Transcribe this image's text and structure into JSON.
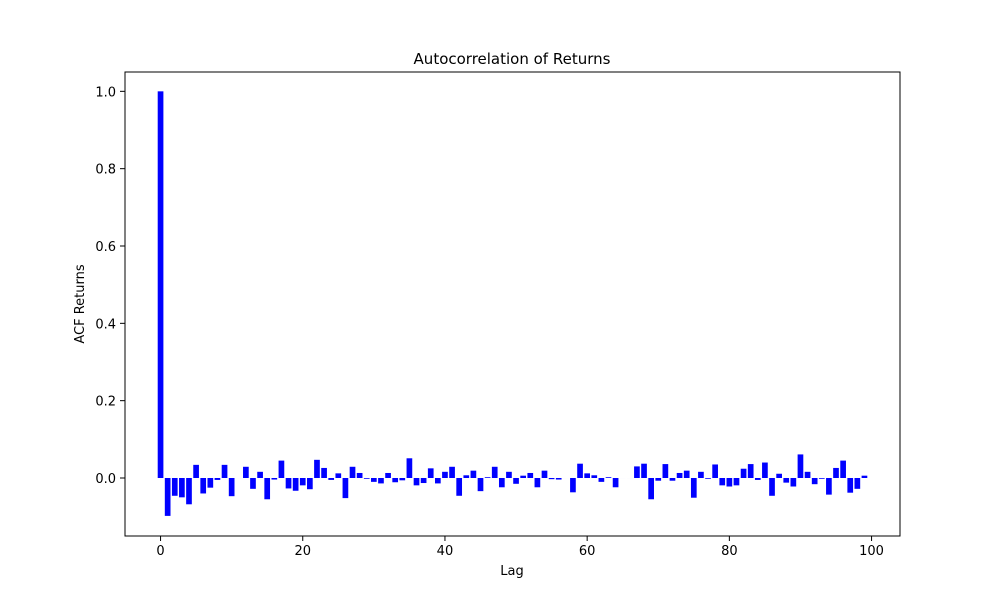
{
  "chart_data": {
    "type": "bar",
    "title": "Autocorrelation of Returns",
    "xlabel": "Lag",
    "ylabel": "ACF Returns",
    "xlim": [
      -5,
      104
    ],
    "ylim": [
      -0.15,
      1.05
    ],
    "x_ticks": [
      0,
      20,
      40,
      60,
      80,
      100
    ],
    "y_ticks": [
      0.0,
      0.2,
      0.4,
      0.6,
      0.8,
      1.0
    ],
    "x_tick_labels": [
      "0",
      "20",
      "40",
      "60",
      "80",
      "100"
    ],
    "y_tick_labels": [
      "0.0",
      "0.2",
      "0.4",
      "0.6",
      "0.8",
      "1.0"
    ],
    "bar_color": "#0000ff",
    "grid": false,
    "x": [
      0,
      1,
      2,
      3,
      4,
      5,
      6,
      7,
      8,
      9,
      10,
      11,
      12,
      13,
      14,
      15,
      16,
      17,
      18,
      19,
      20,
      21,
      22,
      23,
      24,
      25,
      26,
      27,
      28,
      29,
      30,
      31,
      32,
      33,
      34,
      35,
      36,
      37,
      38,
      39,
      40,
      41,
      42,
      43,
      44,
      45,
      46,
      47,
      48,
      49,
      50,
      51,
      52,
      53,
      54,
      55,
      56,
      57,
      58,
      59,
      60,
      61,
      62,
      63,
      64,
      65,
      66,
      67,
      68,
      69,
      70,
      71,
      72,
      73,
      74,
      75,
      76,
      77,
      78,
      79,
      80,
      81,
      82,
      83,
      84,
      85,
      86,
      87,
      88,
      89,
      90,
      91,
      92,
      93,
      94,
      95,
      96,
      97,
      98,
      99
    ],
    "values": [
      1.0,
      -0.098,
      -0.046,
      -0.05,
      -0.068,
      0.034,
      -0.04,
      -0.025,
      -0.005,
      0.034,
      -0.047,
      0.0,
      0.029,
      -0.028,
      0.016,
      -0.055,
      -0.004,
      0.045,
      -0.027,
      -0.033,
      -0.019,
      -0.029,
      0.047,
      0.026,
      -0.005,
      0.012,
      -0.052,
      0.029,
      0.013,
      -0.002,
      -0.01,
      -0.014,
      0.013,
      -0.011,
      -0.006,
      0.051,
      -0.019,
      -0.013,
      0.025,
      -0.014,
      0.016,
      0.029,
      -0.046,
      0.007,
      0.019,
      -0.034,
      0.002,
      0.029,
      -0.024,
      0.016,
      -0.015,
      0.006,
      0.013,
      -0.024,
      0.019,
      -0.003,
      -0.004,
      0.0,
      -0.037,
      0.037,
      0.012,
      0.007,
      -0.01,
      0.002,
      -0.024,
      0.0,
      0.0,
      0.03,
      0.037,
      -0.055,
      -0.007,
      0.036,
      -0.007,
      0.013,
      0.019,
      -0.051,
      0.016,
      -0.002,
      0.035,
      -0.019,
      -0.022,
      -0.019,
      0.024,
      0.036,
      -0.005,
      0.04,
      -0.046,
      0.011,
      -0.012,
      -0.022,
      0.061,
      0.016,
      -0.016,
      -0.002,
      -0.043,
      0.026,
      0.045,
      -0.038,
      -0.028,
      0.006
    ]
  }
}
